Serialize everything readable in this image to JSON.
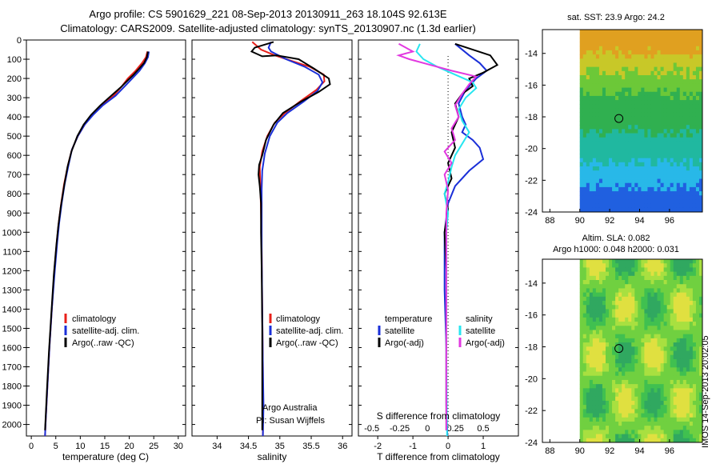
{
  "header": {
    "title_line1": "Argo profile: CS 5901629_221 08-Sep-2013 20130911_263 18.104S 92.613E",
    "title_line2": "Climatology: CARS2009. Satellite-adjusted climatology: synTS_20130907.nc (1.3d earlier)"
  },
  "colors": {
    "climatology": "#e8201a",
    "satellite": "#1a2fd8",
    "argo": "#000000",
    "sal_satellite": "#28e6f0",
    "sal_argo": "#e238e0"
  },
  "depth_axis": {
    "ticks": [
      0,
      100,
      200,
      300,
      400,
      500,
      600,
      700,
      800,
      900,
      1000,
      1100,
      1200,
      1300,
      1400,
      1500,
      1600,
      1700,
      1800,
      1900,
      2000
    ],
    "ylim": [
      0,
      2060
    ]
  },
  "chart_data": [
    {
      "id": "temperature",
      "type": "line",
      "xlabel": "temperature (deg C)",
      "xlim": [
        -1,
        31.5
      ],
      "xticks": [
        0,
        5,
        10,
        15,
        20,
        25,
        30
      ],
      "legend": [
        "climatology",
        "satellite-adj. clim.",
        "Argo(..raw -QC)"
      ],
      "series": [
        {
          "name": "climatology",
          "color_key": "climatology",
          "points": [
            [
              23.7,
              60
            ],
            [
              23.4,
              90
            ],
            [
              22.6,
              120
            ],
            [
              21.3,
              160
            ],
            [
              19.7,
              200
            ],
            [
              18.5,
              240
            ],
            [
              16.8,
              290
            ],
            [
              14.4,
              340
            ],
            [
              12.5,
              390
            ],
            [
              10.9,
              440
            ],
            [
              9.5,
              500
            ],
            [
              8.3,
              570
            ],
            [
              7.5,
              650
            ],
            [
              6.7,
              750
            ],
            [
              6.1,
              850
            ],
            [
              5.6,
              950
            ],
            [
              5.2,
              1050
            ],
            [
              4.7,
              1200
            ],
            [
              4.2,
              1400
            ],
            [
              3.7,
              1600
            ],
            [
              3.3,
              1800
            ],
            [
              2.9,
              2000
            ],
            [
              2.8,
              2060
            ]
          ]
        },
        {
          "name": "satellite",
          "color_key": "satellite",
          "points": [
            [
              24.0,
              60
            ],
            [
              23.8,
              90
            ],
            [
              23.2,
              120
            ],
            [
              22.1,
              160
            ],
            [
              20.6,
              200
            ],
            [
              19.1,
              240
            ],
            [
              17.2,
              290
            ],
            [
              14.6,
              340
            ],
            [
              12.6,
              390
            ],
            [
              10.9,
              440
            ],
            [
              9.5,
              500
            ],
            [
              8.3,
              570
            ],
            [
              7.6,
              650
            ],
            [
              6.8,
              750
            ],
            [
              6.2,
              850
            ],
            [
              5.7,
              950
            ],
            [
              5.3,
              1050
            ],
            [
              4.8,
              1200
            ],
            [
              4.2,
              1400
            ],
            [
              3.7,
              1600
            ],
            [
              3.3,
              1800
            ],
            [
              2.9,
              2000
            ],
            [
              2.8,
              2060
            ]
          ]
        },
        {
          "name": "argo",
          "color_key": "argo",
          "points": [
            [
              23.8,
              60
            ],
            [
              23.6,
              90
            ],
            [
              23.0,
              120
            ],
            [
              22.0,
              150
            ],
            [
              20.9,
              180
            ],
            [
              19.7,
              210
            ],
            [
              18.3,
              245
            ],
            [
              16.3,
              290
            ],
            [
              14.1,
              340
            ],
            [
              12.2,
              390
            ],
            [
              10.7,
              440
            ],
            [
              9.4,
              500
            ],
            [
              8.2,
              580
            ],
            [
              7.4,
              660
            ],
            [
              6.7,
              760
            ],
            [
              6.0,
              870
            ],
            [
              5.5,
              970
            ],
            [
              5.1,
              1070
            ],
            [
              4.6,
              1220
            ],
            [
              4.1,
              1420
            ],
            [
              3.6,
              1620
            ],
            [
              3.2,
              1820
            ],
            [
              2.8,
              2030
            ]
          ]
        }
      ]
    },
    {
      "id": "salinity",
      "type": "line",
      "xlabel": "salinity",
      "xlim": [
        33.6,
        36.15
      ],
      "xticks": [
        34,
        34.5,
        35,
        35.5,
        36
      ],
      "legend": [
        "climatology",
        "satellite-adj. clim.",
        "Argo(..raw -QC)"
      ],
      "annotation": [
        "Argo Australia",
        "PI: Susan Wijffels"
      ],
      "series": [
        {
          "name": "climatology",
          "color_key": "climatology",
          "points": [
            [
              34.56,
              10
            ],
            [
              34.7,
              50
            ],
            [
              34.92,
              80
            ],
            [
              35.2,
              110
            ],
            [
              35.48,
              140
            ],
            [
              35.7,
              180
            ],
            [
              35.71,
              215
            ],
            [
              35.58,
              260
            ],
            [
              35.32,
              320
            ],
            [
              35.08,
              380
            ],
            [
              34.92,
              430
            ],
            [
              34.8,
              500
            ],
            [
              34.72,
              580
            ],
            [
              34.68,
              660
            ],
            [
              34.69,
              760
            ],
            [
              34.7,
              900
            ],
            [
              34.71,
              1100
            ],
            [
              34.72,
              1400
            ],
            [
              34.73,
              1700
            ],
            [
              34.73,
              2060
            ]
          ]
        },
        {
          "name": "satellite",
          "color_key": "satellite",
          "points": [
            [
              34.86,
              10
            ],
            [
              34.82,
              40
            ],
            [
              34.86,
              60
            ],
            [
              35.1,
              100
            ],
            [
              35.4,
              140
            ],
            [
              35.62,
              180
            ],
            [
              35.68,
              220
            ],
            [
              35.6,
              265
            ],
            [
              35.38,
              320
            ],
            [
              35.12,
              380
            ],
            [
              34.96,
              430
            ],
            [
              34.84,
              500
            ],
            [
              34.76,
              590
            ],
            [
              34.72,
              680
            ],
            [
              34.71,
              780
            ],
            [
              34.71,
              900
            ],
            [
              34.71,
              1100
            ],
            [
              34.72,
              1400
            ],
            [
              34.73,
              1700
            ],
            [
              34.74,
              1900
            ],
            [
              34.73,
              2060
            ]
          ]
        },
        {
          "name": "argo",
          "color_key": "argo",
          "points": [
            [
              34.9,
              10
            ],
            [
              34.6,
              40
            ],
            [
              34.55,
              60
            ],
            [
              34.72,
              85
            ],
            [
              34.95,
              80
            ],
            [
              35.3,
              100
            ],
            [
              35.4,
              120
            ],
            [
              35.55,
              150
            ],
            [
              35.78,
              200
            ],
            [
              35.8,
              230
            ],
            [
              35.62,
              270
            ],
            [
              35.34,
              320
            ],
            [
              35.05,
              380
            ],
            [
              34.9,
              440
            ],
            [
              34.78,
              520
            ],
            [
              34.72,
              600
            ],
            [
              34.67,
              650
            ],
            [
              34.66,
              700
            ],
            [
              34.68,
              760
            ],
            [
              34.7,
              850
            ],
            [
              34.7,
              1000
            ],
            [
              34.71,
              1200
            ],
            [
              34.72,
              1500
            ],
            [
              34.72,
              1800
            ],
            [
              34.72,
              2030
            ]
          ]
        }
      ]
    },
    {
      "id": "difference",
      "type": "line",
      "xlabel": "T difference from climatology",
      "xlabel_top": "S difference from climatology",
      "xlim": [
        -2.55,
        2.0
      ],
      "xticks": [
        -2,
        -1,
        0,
        1
      ],
      "xticks_top": [
        -0.5,
        -0.25,
        0,
        0.25,
        0.5
      ],
      "legend_temperature": {
        "header": "temperature",
        "items": [
          "satellite",
          "Argo(-adj)"
        ]
      },
      "legend_salinity": {
        "header": "salinity",
        "items": [
          "satellite",
          "Argo(-adj)"
        ]
      },
      "series": [
        {
          "name": "T satellite",
          "color_key": "satellite",
          "points": [
            [
              0.2,
              20
            ],
            [
              0.6,
              80
            ],
            [
              0.9,
              120
            ],
            [
              1.1,
              160
            ],
            [
              0.8,
              200
            ],
            [
              0.5,
              260
            ],
            [
              0.3,
              330
            ],
            [
              0.4,
              400
            ],
            [
              0.5,
              440
            ],
            [
              0.4,
              480
            ],
            [
              0.7,
              520
            ],
            [
              0.9,
              560
            ],
            [
              1.0,
              620
            ],
            [
              0.6,
              680
            ],
            [
              0.2,
              760
            ],
            [
              0.0,
              850
            ],
            [
              -0.1,
              1000
            ],
            [
              -0.1,
              1300
            ],
            [
              -0.05,
              1600
            ],
            [
              -0.05,
              1900
            ],
            [
              -0.02,
              2060
            ]
          ]
        },
        {
          "name": "T argo",
          "color_key": "argo",
          "points": [
            [
              0.2,
              20
            ],
            [
              1.2,
              80
            ],
            [
              1.4,
              130
            ],
            [
              1.0,
              170
            ],
            [
              0.6,
              200
            ],
            [
              0.7,
              240
            ],
            [
              0.4,
              280
            ],
            [
              0.2,
              330
            ],
            [
              0.3,
              400
            ],
            [
              0.1,
              480
            ],
            [
              0.2,
              560
            ],
            [
              0.0,
              640
            ],
            [
              0.1,
              720
            ],
            [
              -0.1,
              800
            ],
            [
              0.0,
              880
            ],
            [
              -0.1,
              1000
            ],
            [
              -0.05,
              1200
            ],
            [
              -0.05,
              1500
            ],
            [
              -0.05,
              1800
            ],
            [
              -0.05,
              2030
            ]
          ]
        },
        {
          "name": "S satellite",
          "color_key": "sal_satellite",
          "points": [
            [
              -0.8,
              20
            ],
            [
              -0.9,
              60
            ],
            [
              -0.7,
              100
            ],
            [
              -0.3,
              140
            ],
            [
              0.2,
              180
            ],
            [
              0.7,
              220
            ],
            [
              0.8,
              250
            ],
            [
              0.5,
              300
            ],
            [
              0.3,
              360
            ],
            [
              0.4,
              420
            ],
            [
              0.6,
              480
            ],
            [
              0.4,
              540
            ],
            [
              0.2,
              600
            ],
            [
              0.1,
              660
            ],
            [
              0.0,
              740
            ],
            [
              -0.1,
              800
            ],
            [
              0.0,
              900
            ],
            [
              -0.05,
              1000
            ],
            [
              -0.05,
              1300
            ],
            [
              -0.05,
              1600
            ],
            [
              -0.03,
              2060
            ]
          ]
        },
        {
          "name": "S argo",
          "color_key": "sal_argo",
          "points": [
            [
              -1.4,
              20
            ],
            [
              -1.0,
              60
            ],
            [
              -1.4,
              80
            ],
            [
              -1.1,
              100
            ],
            [
              -0.5,
              130
            ],
            [
              0.1,
              160
            ],
            [
              0.8,
              190
            ],
            [
              0.6,
              230
            ],
            [
              0.4,
              280
            ],
            [
              0.2,
              340
            ],
            [
              0.3,
              400
            ],
            [
              0.1,
              460
            ],
            [
              0.2,
              520
            ],
            [
              -0.1,
              580
            ],
            [
              0.1,
              640
            ],
            [
              -0.1,
              700
            ],
            [
              0.0,
              780
            ],
            [
              -0.05,
              900
            ],
            [
              -0.05,
              1200
            ],
            [
              -0.05,
              1600
            ],
            [
              -0.05,
              2030
            ]
          ]
        }
      ]
    },
    {
      "id": "sst_map",
      "type": "heatmap",
      "title": "sat. SST: 23.9  Argo: 24.2",
      "xlim": [
        87.5,
        98.2
      ],
      "ylim": [
        -24,
        -12.5
      ],
      "xticks": [
        88,
        90,
        92,
        94,
        96
      ],
      "yticks": [
        -14,
        -16,
        -18,
        -20,
        -22,
        -24
      ],
      "data_xmin": 90,
      "marker": {
        "lon": 92.613,
        "lat": -18.104
      }
    },
    {
      "id": "sla_map",
      "type": "heatmap",
      "title_line1": "Altim. SLA: 0.082",
      "title_line2": "Argo h1000: 0.048  h2000: 0.031",
      "xlim": [
        87.5,
        98.2
      ],
      "ylim": [
        -24,
        -12.5
      ],
      "xticks": [
        88,
        90,
        92,
        94,
        96
      ],
      "yticks": [
        -14,
        -16,
        -18,
        -20,
        -22,
        -24
      ],
      "data_xmin": 90,
      "marker": {
        "lon": 92.613,
        "lat": -18.104
      }
    }
  ],
  "footer": {
    "stamp": "IMOS 14-Sep-2013 20:02:05"
  }
}
